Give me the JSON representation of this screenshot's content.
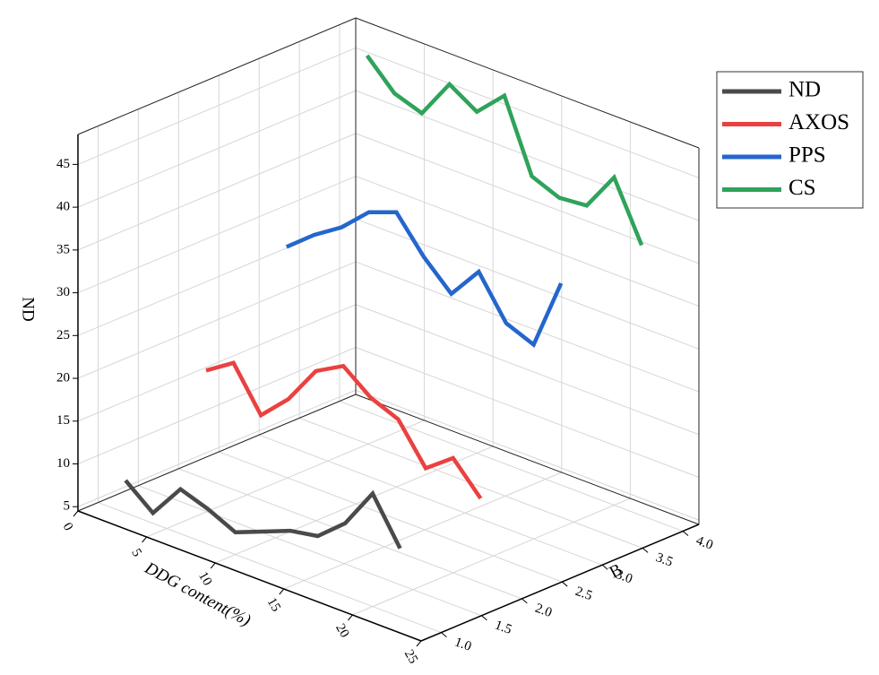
{
  "chart_data": {
    "type": "line3d",
    "xlabel": "DDG content(%)",
    "ylabel": "B",
    "zlabel": "ND",
    "xlim": [
      0,
      25
    ],
    "xticks": [
      0,
      5,
      10,
      15,
      20,
      25
    ],
    "ylim": [
      0.75,
      4.2
    ],
    "yticks": [
      {
        "value": 1,
        "label": "1.0"
      },
      1.5,
      {
        "value": 2,
        "label": "2.0"
      },
      2.5,
      {
        "value": 3,
        "label": "3.0"
      },
      3.5,
      {
        "value": 4,
        "label": "4.0"
      }
    ],
    "zlim": [
      4.5,
      48.5
    ],
    "zticks": [
      5,
      10,
      15,
      20,
      25,
      30,
      35,
      40,
      45
    ],
    "grid": true,
    "legend": "upper right",
    "x": [
      2,
      4,
      6,
      8,
      10,
      12,
      14,
      16,
      18,
      20,
      22
    ],
    "series": [
      {
        "name": "ND",
        "color": "#4a4a4a",
        "y": 1,
        "values": [
          8.3,
          5.7,
          9.7,
          8.6,
          7.1,
          8.4,
          9.7,
          10.3,
          13.0,
          17.7,
          12.5
        ]
      },
      {
        "name": "AXOS",
        "color": "#ea4140",
        "y": 2,
        "values": [
          17.2,
          19.3,
          14.4,
          17.5,
          22.0,
          23.8,
          21.3,
          20.0,
          15.5,
          17.9,
          14.4
        ]
      },
      {
        "name": "PPS",
        "color": "#2466cc",
        "y": 3,
        "values": [
          27.7,
          30.3,
          32.4,
          35.4,
          36.6,
          32.6,
          29.5,
          33.3,
          28.5,
          27.2,
          35.6
        ]
      },
      {
        "name": "CS",
        "color": "#2fa35a",
        "y": 4,
        "values": [
          46.1,
          42.9,
          41.8,
          46.4,
          44.4,
          47.5,
          39.3,
          38.0,
          38.3,
          42.8,
          36.1
        ]
      }
    ]
  }
}
